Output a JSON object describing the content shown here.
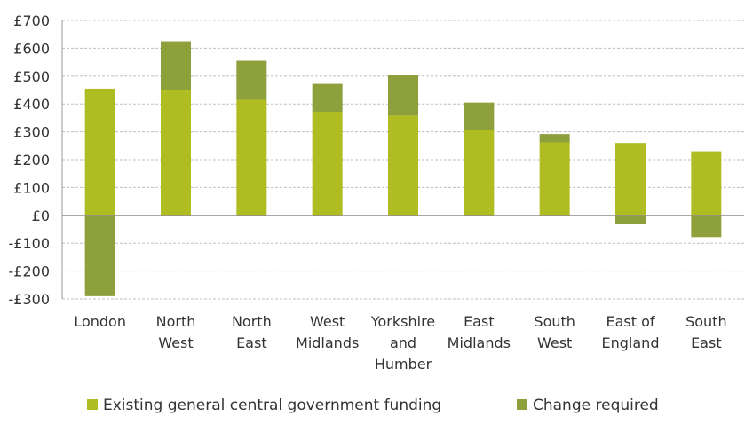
{
  "chart_data": {
    "type": "bar",
    "stacked": true,
    "categories": [
      [
        "London"
      ],
      [
        "North",
        "West"
      ],
      [
        "North",
        "East"
      ],
      [
        "West",
        "Midlands"
      ],
      [
        "Yorkshire",
        "and",
        "Humber"
      ],
      [
        "East",
        "Midlands"
      ],
      [
        "South",
        "West"
      ],
      [
        "East of",
        "England"
      ],
      [
        "South",
        "East"
      ]
    ],
    "series": [
      {
        "name": "Existing general central government funding",
        "color": "#afbd22",
        "values": [
          455,
          450,
          415,
          372,
          358,
          308,
          262,
          260,
          230
        ]
      },
      {
        "name": "Change required",
        "color": "#8ea03c",
        "values": [
          -290,
          175,
          140,
          100,
          145,
          97,
          30,
          -32,
          -78
        ]
      }
    ],
    "ylim": [
      -300,
      700
    ],
    "yticks": [
      700,
      600,
      500,
      400,
      300,
      200,
      100,
      0,
      -100,
      -200,
      -300
    ],
    "ytick_labels": [
      "£700",
      "£600",
      "£500",
      "£400",
      "£300",
      "£200",
      "£100",
      "£0",
      "-£100",
      "-£200",
      "-£300"
    ],
    "grid": true,
    "legend_position": "bottom"
  }
}
